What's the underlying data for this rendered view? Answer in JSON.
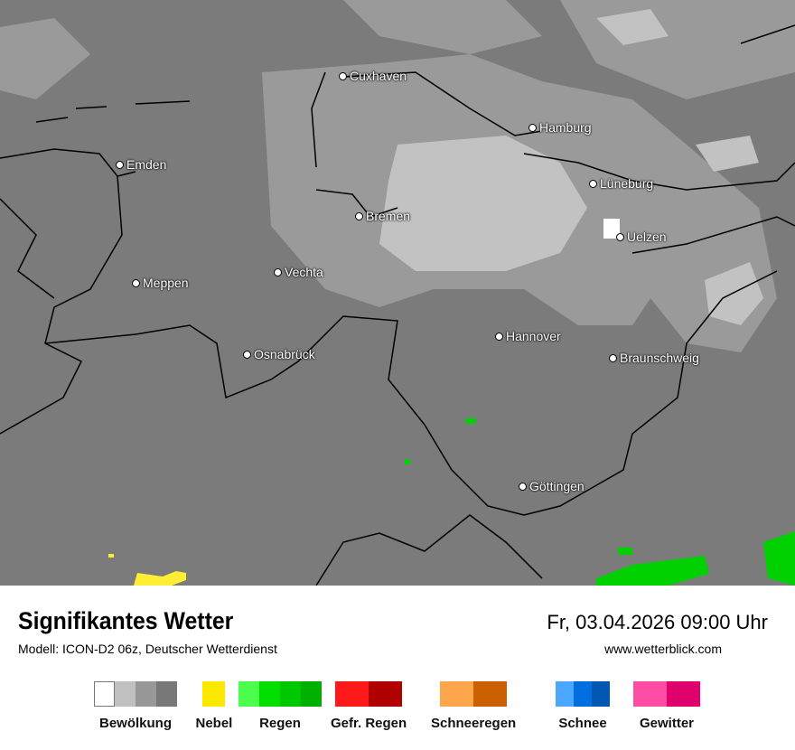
{
  "header": {
    "title": "Signifikantes Wetter",
    "subtitle": "Modell: ICON-D2 06z, Deutscher Wetterdienst",
    "datetime": "Fr, 03.04.2026 09:00 Uhr",
    "website": "www.wetterblick.com"
  },
  "cities": [
    {
      "name": "Cuxhaven"
    },
    {
      "name": "Hamburg"
    },
    {
      "name": "Emden"
    },
    {
      "name": "Lüneburg"
    },
    {
      "name": "Bremen"
    },
    {
      "name": "Uelzen"
    },
    {
      "name": "Vechta"
    },
    {
      "name": "Meppen"
    },
    {
      "name": "Hannover"
    },
    {
      "name": "Osnabrück"
    },
    {
      "name": "Braunschweig"
    },
    {
      "name": "Göttingen"
    }
  ],
  "legend": [
    {
      "label": "Bewölkung",
      "colors": [
        "#ffffff",
        "#c0c0c0",
        "#989898",
        "#787878"
      ]
    },
    {
      "label": "Nebel",
      "colors": [
        "#ffe800"
      ]
    },
    {
      "label": "Regen",
      "colors": [
        "#4cff4c",
        "#00e000",
        "#00c800",
        "#00b000"
      ]
    },
    {
      "label": "Gefr. Regen",
      "colors": [
        "#ff1a1a",
        "#b00000"
      ]
    },
    {
      "label": "Schneeregen",
      "colors": [
        "#ffa54c",
        "#cc5f00"
      ]
    },
    {
      "label": "Schnee",
      "colors": [
        "#4da6ff",
        "#0070e0",
        "#0058b0"
      ]
    },
    {
      "label": "Gewitter",
      "colors": [
        "#ff4da6",
        "#e0006e"
      ]
    }
  ]
}
